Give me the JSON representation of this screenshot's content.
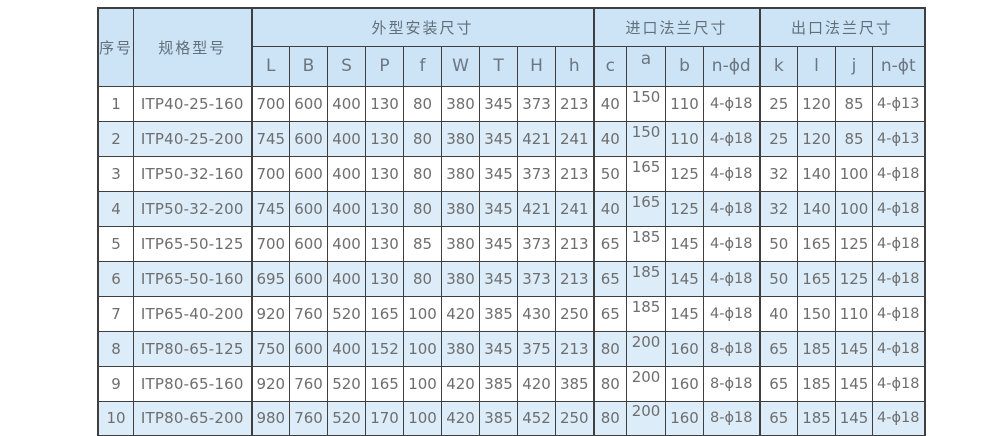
{
  "table": {
    "header_groups": [
      {
        "label": "序号",
        "rowspan": 2,
        "colspan": 1
      },
      {
        "label": "规格型号",
        "rowspan": 2,
        "colspan": 1
      },
      {
        "label": "外型安装尺寸",
        "rowspan": 1,
        "colspan": 9
      },
      {
        "label": "进口法兰尺寸",
        "rowspan": 1,
        "colspan": 4
      },
      {
        "label": "出口法兰尺寸",
        "rowspan": 1,
        "colspan": 4
      }
    ],
    "sub_headers": [
      "L",
      "B",
      "S",
      "P",
      "f",
      "W",
      "T",
      "H",
      "h",
      "c",
      "a",
      "b",
      "n-ϕd",
      "k",
      "l",
      "j",
      "n-ϕt"
    ],
    "rows": [
      {
        "no": "1",
        "model": "ITP40-25-160",
        "values": [
          "700",
          "600",
          "400",
          "130",
          "80",
          "380",
          "345",
          "373",
          "213",
          "40",
          "150",
          "110",
          "4-ϕ18",
          "25",
          "120",
          "85",
          "4-ϕ13"
        ]
      },
      {
        "no": "2",
        "model": "ITP40-25-200",
        "values": [
          "745",
          "600",
          "400",
          "130",
          "80",
          "380",
          "345",
          "421",
          "241",
          "40",
          "150",
          "110",
          "4-ϕ18",
          "25",
          "120",
          "85",
          "4-ϕ13"
        ]
      },
      {
        "no": "3",
        "model": "ITP50-32-160",
        "values": [
          "700",
          "600",
          "400",
          "130",
          "80",
          "380",
          "345",
          "373",
          "213",
          "50",
          "165",
          "125",
          "4-ϕ18",
          "32",
          "140",
          "100",
          "4-ϕ18"
        ]
      },
      {
        "no": "4",
        "model": "ITP50-32-200",
        "values": [
          "745",
          "600",
          "400",
          "130",
          "80",
          "380",
          "345",
          "421",
          "241",
          "40",
          "165",
          "125",
          "4-ϕ18",
          "32",
          "140",
          "100",
          "4-ϕ18"
        ]
      },
      {
        "no": "5",
        "model": "ITP65-50-125",
        "values": [
          "700",
          "600",
          "400",
          "130",
          "85",
          "380",
          "345",
          "373",
          "213",
          "65",
          "185",
          "145",
          "4-ϕ18",
          "50",
          "165",
          "125",
          "4-ϕ18"
        ]
      },
      {
        "no": "6",
        "model": "ITP65-50-160",
        "values": [
          "695",
          "600",
          "400",
          "130",
          "80",
          "380",
          "345",
          "373",
          "213",
          "65",
          "185",
          "145",
          "4-ϕ18",
          "50",
          "165",
          "125",
          "4-ϕ18"
        ]
      },
      {
        "no": "7",
        "model": "ITP65-40-200",
        "values": [
          "920",
          "760",
          "520",
          "165",
          "100",
          "420",
          "385",
          "430",
          "250",
          "65",
          "185",
          "145",
          "4-ϕ18",
          "40",
          "150",
          "110",
          "4-ϕ18"
        ]
      },
      {
        "no": "8",
        "model": "ITP80-65-125",
        "values": [
          "750",
          "600",
          "400",
          "152",
          "100",
          "380",
          "345",
          "375",
          "213",
          "80",
          "200",
          "160",
          "8-ϕ18",
          "65",
          "185",
          "145",
          "4-ϕ18"
        ]
      },
      {
        "no": "9",
        "model": "ITP80-65-160",
        "values": [
          "920",
          "760",
          "520",
          "165",
          "100",
          "420",
          "385",
          "420",
          "385",
          "80",
          "200",
          "160",
          "8-ϕ18",
          "65",
          "185",
          "145",
          "4-ϕ18"
        ]
      },
      {
        "no": "10",
        "model": "ITP80-65-200",
        "values": [
          "980",
          "760",
          "520",
          "170",
          "100",
          "420",
          "385",
          "452",
          "250",
          "80",
          "200",
          "160",
          "8-ϕ18",
          "65",
          "185",
          "145",
          "4-ϕ18"
        ]
      }
    ]
  },
  "colors": {
    "header_bg": "#cce4f6",
    "row_alt_bg": "#dcecf9",
    "row_bg": "#ffffff",
    "border": "#3f3f3f",
    "text": "#6e6e6e"
  }
}
